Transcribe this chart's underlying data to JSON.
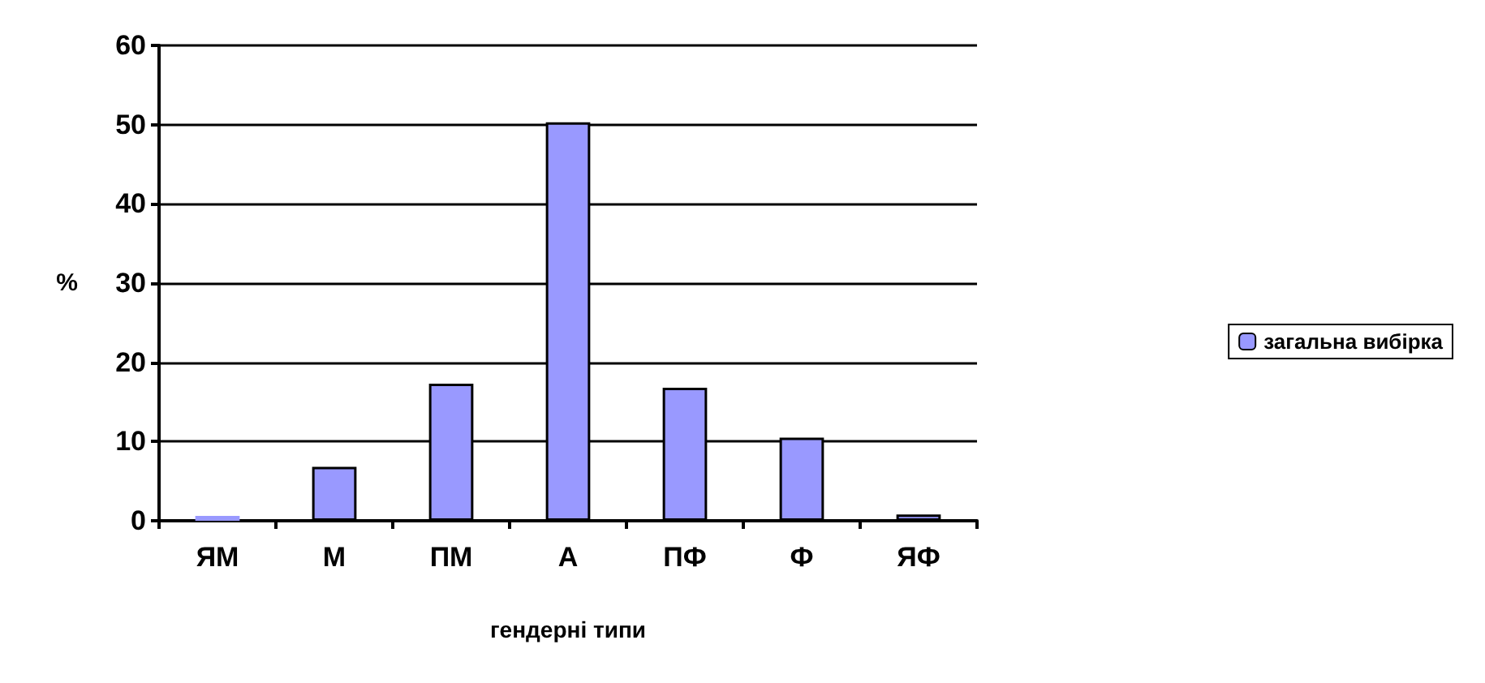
{
  "chart_data": {
    "type": "bar",
    "xlabel": "гендерні типи",
    "ylabel": "%",
    "categories": [
      "ЯМ",
      "М",
      "ПМ",
      "А",
      "ПФ",
      "Ф",
      "ЯФ"
    ],
    "series": [
      {
        "name": "загальна вибірка",
        "color": "#9999ff",
        "values": [
          0,
          6.8,
          17.3,
          50.3,
          16.8,
          10.5,
          0.8
        ]
      }
    ],
    "ylim": [
      0,
      60
    ],
    "yticks": [
      0,
      10,
      20,
      30,
      40,
      50,
      60
    ],
    "grid": "y",
    "legend": "right"
  }
}
